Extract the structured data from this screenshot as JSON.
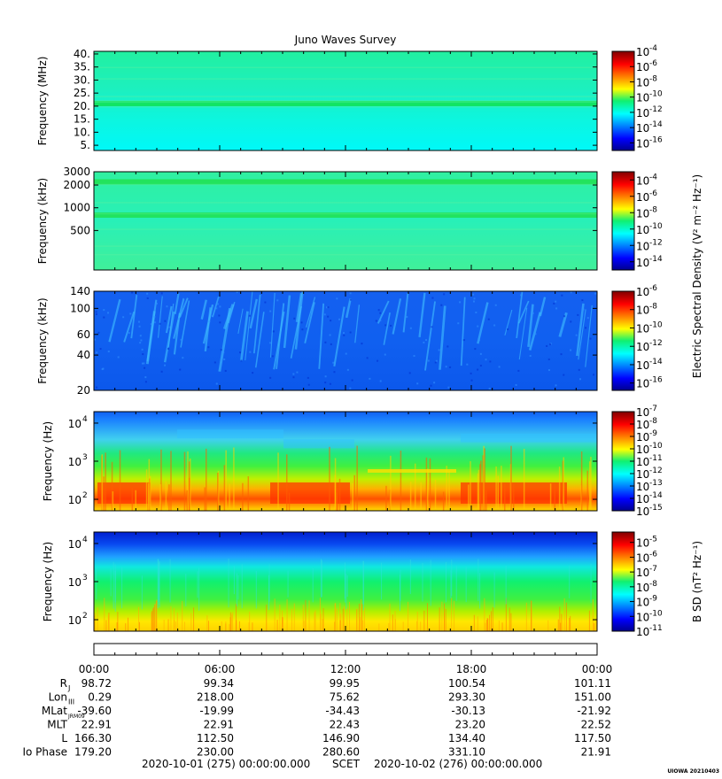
{
  "title": "Juno Waves Survey",
  "stamp": "UIOWA 20210403",
  "colors": {
    "frame": "#000000"
  },
  "chart_data": [
    {
      "type": "heatmap",
      "ylabel": "Frequency (MHz)",
      "yscale": "linear",
      "ylim": [
        3,
        41
      ],
      "yticks": [
        "40.",
        "35.",
        "30.",
        "25.",
        "20.",
        "15.",
        "10.",
        "5."
      ],
      "ytick_values": [
        40,
        35,
        30,
        25,
        20,
        15,
        10,
        5
      ],
      "colorbar": {
        "exponents": [
          "-4",
          "-6",
          "-8",
          "-10",
          "-12",
          "-14",
          "-16"
        ],
        "range": [
          -17,
          -4
        ]
      },
      "bands": [
        {
          "y": 21,
          "width": 1.5,
          "color": "#10e050"
        }
      ],
      "background": "cyan-green gradient"
    },
    {
      "type": "heatmap",
      "ylabel": "Frequency (kHz)",
      "yscale": "log",
      "ylim": [
        150,
        3000
      ],
      "yticks": [
        "3000",
        "2000",
        "1000",
        "500"
      ],
      "ytick_values": [
        3000,
        2000,
        1000,
        500
      ],
      "colorbar": {
        "exponents": [
          "-4",
          "-6",
          "-8",
          "-10",
          "-12",
          "-14"
        ],
        "range": [
          -15,
          -3
        ]
      },
      "bands": [
        {
          "y": 800,
          "color": "#20e050"
        },
        {
          "y": 2200,
          "color": "#20e050"
        }
      ]
    },
    {
      "type": "heatmap",
      "ylabel": "Frequency (kHz)",
      "yscale": "log",
      "ylim": [
        20,
        140
      ],
      "yticks": [
        "140",
        "100",
        "60",
        "40",
        "20"
      ],
      "ytick_values": [
        140,
        100,
        60,
        40,
        20
      ],
      "colorbar": {
        "exponents": [
          "-6",
          "-8",
          "-10",
          "-12",
          "-14",
          "-16"
        ],
        "range": [
          -16.8,
          -6
        ]
      },
      "background": "blue with cyan streaks"
    },
    {
      "type": "heatmap",
      "ylabel": "Frequency (Hz)",
      "yscale": "log",
      "ylim": [
        50,
        20000
      ],
      "yticks": [
        {
          "base": "10",
          "exp": "4",
          "value": 10000
        },
        {
          "base": "10",
          "exp": "3",
          "value": 1000
        },
        {
          "base": "10",
          "exp": "2",
          "value": 100
        }
      ],
      "colorbar": {
        "exponents": [
          "-7",
          "-8",
          "-9",
          "-10",
          "-11",
          "-12",
          "-13",
          "-14",
          "-15"
        ],
        "range": [
          -15,
          -7
        ]
      },
      "background": "red-yellow at low freq, green mid, blue high"
    },
    {
      "type": "heatmap",
      "ylabel": "Frequency (Hz)",
      "yscale": "log",
      "ylim": [
        50,
        20000
      ],
      "yticks": [
        {
          "base": "10",
          "exp": "4",
          "value": 10000
        },
        {
          "base": "10",
          "exp": "3",
          "value": 1000
        },
        {
          "base": "10",
          "exp": "2",
          "value": 100
        }
      ],
      "colorbar": {
        "exponents": [
          "-5",
          "-6",
          "-7",
          "-8",
          "-9",
          "-10",
          "-11"
        ],
        "range": [
          -11,
          -4.3
        ]
      },
      "background": "blue top, green middle, yellow bottom"
    }
  ],
  "colorbar_labels": {
    "electric": "Electric Spectral Density (V² m⁻² Hz⁻¹)",
    "magnetic": "B SD (nT² Hz⁻¹)"
  },
  "time_axis": {
    "ticks": [
      "00:00",
      "06:00",
      "12:00",
      "18:00",
      "00:00"
    ],
    "rows": [
      {
        "label": "R",
        "sub": "J",
        "values": [
          "98.72",
          "99.34",
          "99.95",
          "100.54",
          "101.11"
        ]
      },
      {
        "label": "Lon",
        "sub": "III",
        "values": [
          "0.29",
          "218.00",
          "75.62",
          "293.30",
          "151.00"
        ]
      },
      {
        "label": "MLat",
        "sub": "JRM09",
        "values": [
          "-39.60",
          "-19.99",
          "-34.43",
          "-30.13",
          "-21.92"
        ]
      },
      {
        "label": "MLT",
        "sub": "",
        "values": [
          "22.91",
          "22.91",
          "22.43",
          "23.20",
          "22.52"
        ]
      },
      {
        "label": "L",
        "sub": "",
        "values": [
          "166.30",
          "112.50",
          "146.90",
          "134.40",
          "117.50"
        ]
      },
      {
        "label": "Io Phase",
        "sub": "",
        "values": [
          "179.20",
          "230.00",
          "280.60",
          "331.10",
          "21.91"
        ]
      }
    ],
    "footer_left": "2020-10-01 (275) 00:00:00.000",
    "footer_mid": "SCET",
    "footer_right": "2020-10-02 (276) 00:00:00.000"
  }
}
